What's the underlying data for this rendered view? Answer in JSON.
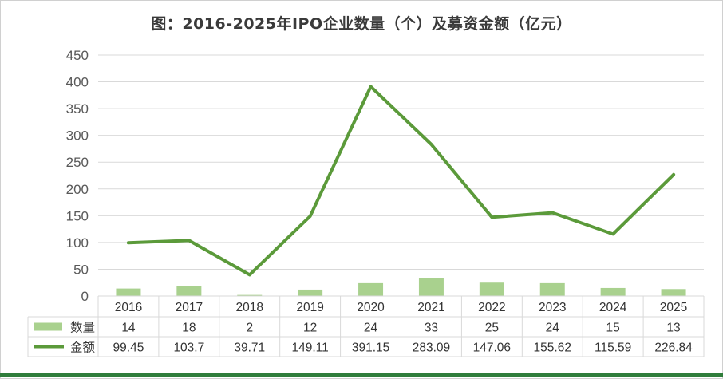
{
  "chart_data": {
    "type": "bar+line",
    "title": "图：2016-2025年IPO企业数量（个）及募资金额（亿元）",
    "categories": [
      "2016",
      "2017",
      "2018",
      "2019",
      "2020",
      "2021",
      "2022",
      "2023",
      "2024",
      "2025"
    ],
    "ylim": [
      0,
      450
    ],
    "yticks": [
      0,
      50,
      100,
      150,
      200,
      250,
      300,
      350,
      400,
      450
    ],
    "grid": true,
    "legend": "data-table",
    "series": [
      {
        "name": "数量",
        "kind": "bar",
        "color": "#a9d18e",
        "values": [
          14,
          18,
          2,
          12,
          24,
          33,
          25,
          24,
          15,
          13
        ],
        "labels": [
          "14",
          "18",
          "2",
          "12",
          "24",
          "33",
          "25",
          "24",
          "15",
          "13"
        ]
      },
      {
        "name": "金额",
        "kind": "line",
        "color": "#5b9a3a",
        "values": [
          99.45,
          103.7,
          39.71,
          149.11,
          391.15,
          283.09,
          147.06,
          155.62,
          115.59,
          226.84
        ],
        "labels": [
          "99.45",
          "103.7",
          "39.71",
          "149.11",
          "391.15",
          "283.09",
          "147.06",
          "155.62",
          "115.59",
          "226.84"
        ]
      }
    ]
  }
}
